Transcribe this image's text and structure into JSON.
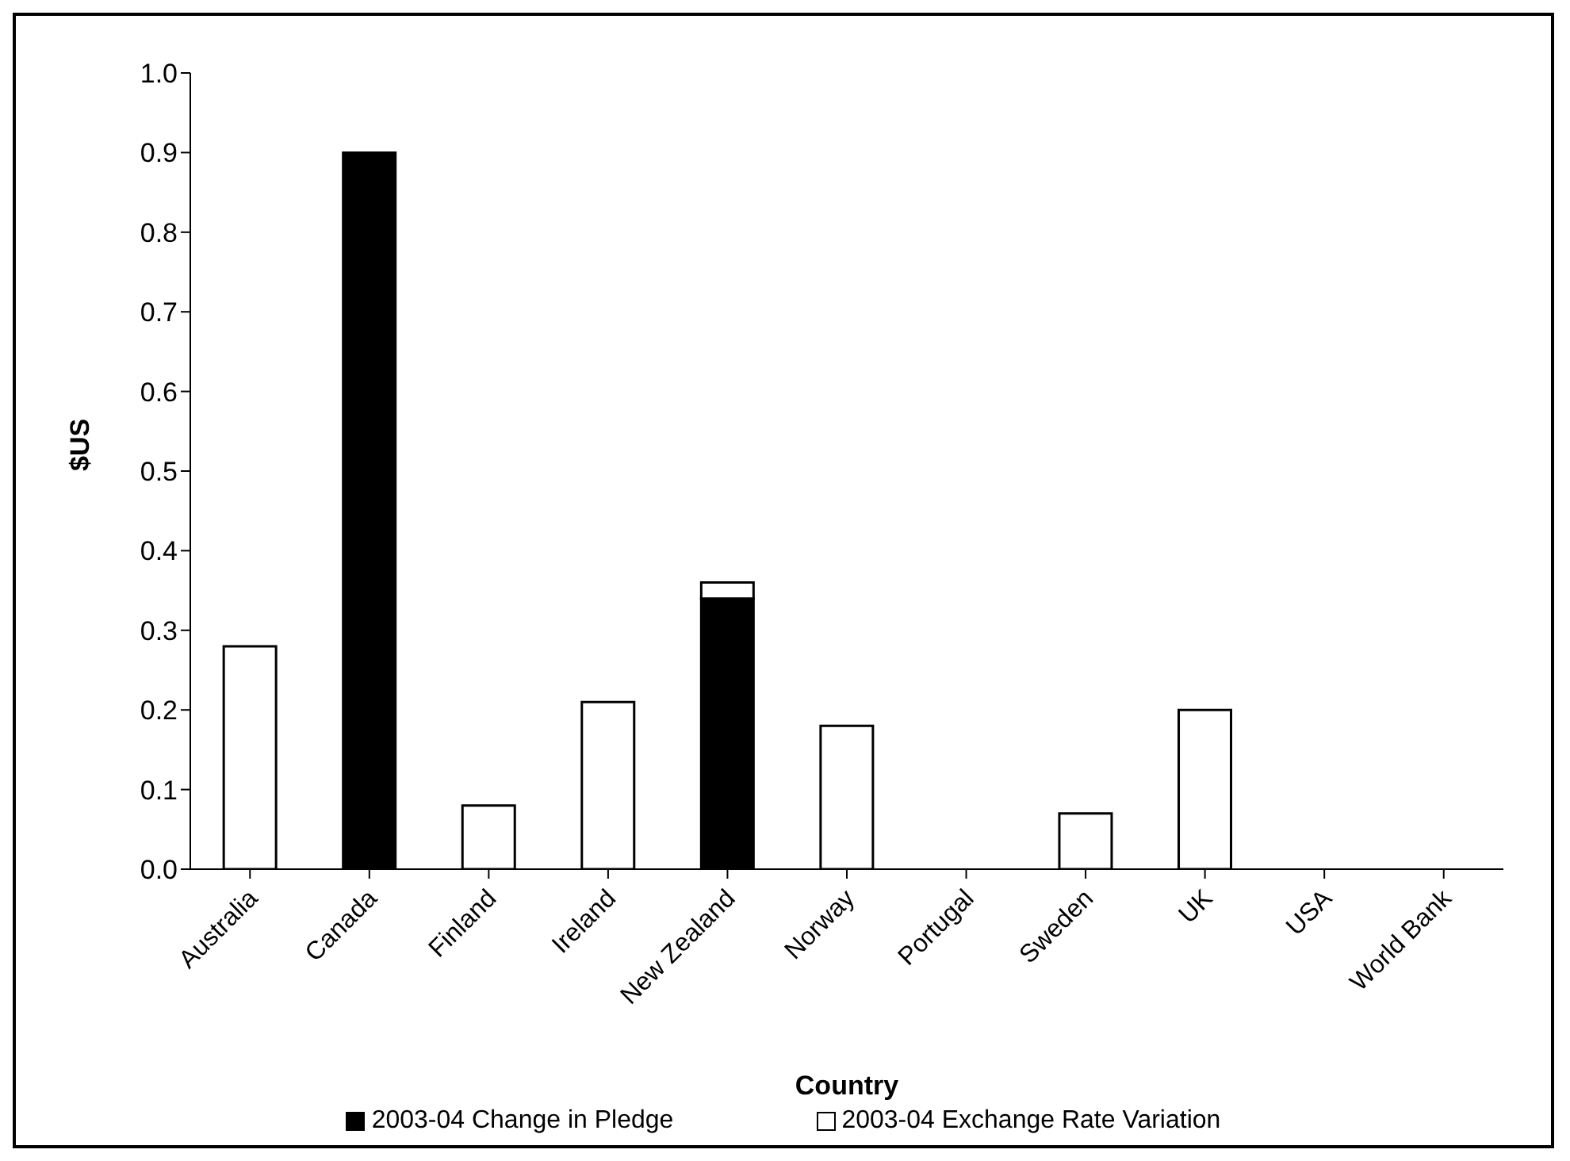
{
  "chart_data": {
    "type": "bar",
    "stacked": true,
    "xlabel": "Country",
    "ylabel": "$US",
    "categories": [
      "Australia",
      "Canada",
      "Finland",
      "Ireland",
      "New Zealand",
      "Norway",
      "Portugal",
      "Sweden",
      "UK",
      "USA",
      "World Bank"
    ],
    "series": [
      {
        "name": "2003-04 Change in Pledge",
        "color": "#000000",
        "values": [
          0,
          0.9,
          0,
          0,
          0.34,
          0,
          0,
          0,
          0,
          0,
          0
        ]
      },
      {
        "name": "2003-04 Exchange Rate Variation",
        "color": "#ffffff",
        "values": [
          0.28,
          0,
          0.08,
          0.21,
          0.02,
          0.18,
          0,
          0.07,
          0.2,
          0,
          0
        ]
      }
    ],
    "ylim": [
      0,
      1
    ],
    "yticks": [
      {
        "value": 0,
        "label": "0.0"
      },
      0.1,
      0.2,
      0.3,
      0.4,
      0.5,
      0.6,
      0.7,
      0.8,
      0.9,
      {
        "value": 1,
        "label": "1.0"
      }
    ],
    "grid": false,
    "legend": "bottom"
  }
}
